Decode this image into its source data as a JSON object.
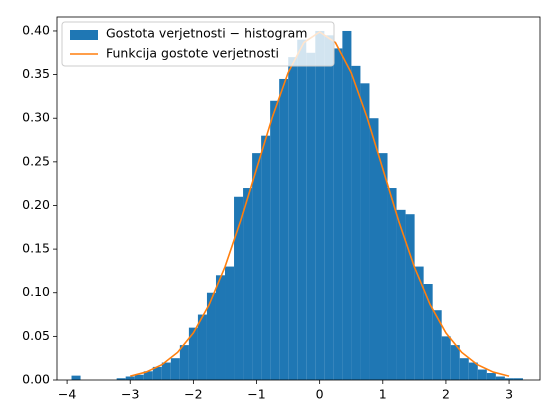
{
  "chart_data": {
    "type": "histogram",
    "xlim": [
      -4.16,
      3.49
    ],
    "ylim": [
      0,
      0.416
    ],
    "xticks": [
      {
        "value": -4,
        "label": "−4"
      },
      {
        "value": -3,
        "label": "−3"
      },
      {
        "value": -2,
        "label": "−2"
      },
      {
        "value": -1,
        "label": "−1"
      },
      0,
      1,
      2,
      3
    ],
    "yticks": [
      {
        "value": 0,
        "label": "0.00"
      },
      {
        "value": 0.05,
        "label": "0.05"
      },
      {
        "value": 0.1,
        "label": "0.10"
      },
      {
        "value": 0.15,
        "label": "0.15"
      },
      {
        "value": 0.2,
        "label": "0.20"
      },
      {
        "value": 0.25,
        "label": "0.25"
      },
      {
        "value": 0.3,
        "label": "0.30"
      },
      {
        "value": 0.35,
        "label": "0.35"
      },
      {
        "value": 0.4,
        "label": "0.40"
      }
    ],
    "legend": "upper left",
    "series": [
      {
        "type": "histogram",
        "name": "Gostota verjetnosti − histogram",
        "color": "#1f77b4",
        "bins": [
          -3.93,
          -3.787,
          -3.644,
          -3.501,
          -3.358,
          -3.215,
          -3.072,
          -2.929,
          -2.786,
          -2.643,
          -2.5,
          -2.357,
          -2.214,
          -2.071,
          -1.928,
          -1.785,
          -1.642,
          -1.499,
          -1.356,
          -1.213,
          -1.07,
          -0.927,
          -0.784,
          -0.641,
          -0.498,
          -0.355,
          -0.212,
          -0.069,
          0.074,
          0.217,
          0.36,
          0.503,
          0.646,
          0.789,
          0.932,
          1.075,
          1.218,
          1.361,
          1.504,
          1.647,
          1.79,
          1.933,
          2.076,
          2.219,
          2.362,
          2.505,
          2.648,
          2.791,
          2.934,
          3.077,
          3.22
        ],
        "values": [
          0.005,
          0,
          0,
          0,
          0,
          0.002,
          0.004,
          0.006,
          0.01,
          0.015,
          0.02,
          0.025,
          0.04,
          0.06,
          0.075,
          0.1,
          0.12,
          0.13,
          0.21,
          0.22,
          0.26,
          0.28,
          0.32,
          0.345,
          0.37,
          0.39,
          0.375,
          0.4,
          0.395,
          0.38,
          0.4,
          0.36,
          0.34,
          0.3,
          0.26,
          0.22,
          0.195,
          0.19,
          0.13,
          0.11,
          0.08,
          0.05,
          0.04,
          0.025,
          0.02,
          0.012,
          0.008,
          0.004,
          0.002,
          0.002
        ]
      },
      {
        "type": "line",
        "name": "Funkcija gostote verjetnosti",
        "color": "#ff7f0e",
        "x": [
          -3,
          -2.75,
          -2.5,
          -2.25,
          -2,
          -1.75,
          -1.5,
          -1.25,
          -1,
          -0.75,
          -0.5,
          -0.25,
          0,
          0.25,
          0.5,
          0.75,
          1,
          1.25,
          1.5,
          1.75,
          2,
          2.25,
          2.5,
          2.75,
          3
        ],
        "values": [
          0.0044,
          0.0091,
          0.0175,
          0.0317,
          0.054,
          0.0863,
          0.1295,
          0.1826,
          0.242,
          0.3011,
          0.3521,
          0.3867,
          0.3989,
          0.3867,
          0.3521,
          0.3011,
          0.242,
          0.1826,
          0.1295,
          0.0863,
          0.054,
          0.0317,
          0.0175,
          0.0091,
          0.0044
        ]
      }
    ]
  }
}
